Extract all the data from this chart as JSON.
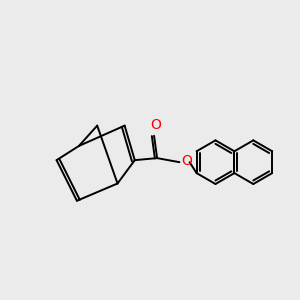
{
  "background_color": "#ebebeb",
  "bond_color": "#000000",
  "o_color": "#ff0000",
  "line_width": 1.4,
  "figsize": [
    3.0,
    3.0
  ],
  "dpi": 100
}
